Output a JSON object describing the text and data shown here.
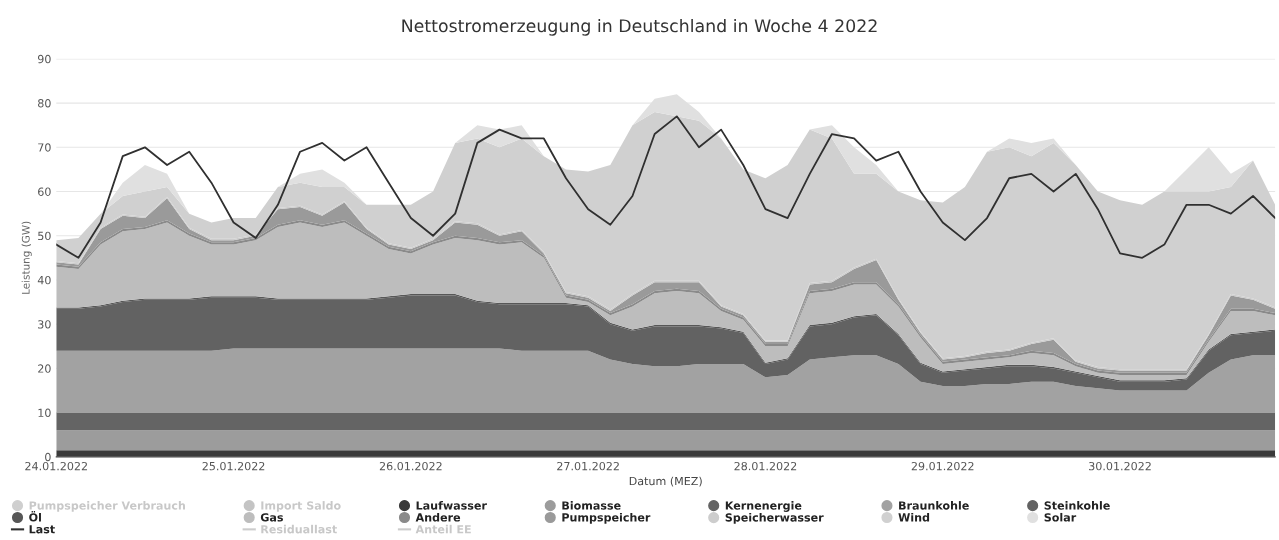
{
  "chart_data": {
    "type": "area",
    "title": "Nettostromerzeugung in Deutschland in Woche 4 2022",
    "xlabel": "Datum (MEZ)",
    "ylabel": "Leistung (GW)",
    "stacked": true,
    "grid": "y",
    "legend": "bottom",
    "x": [
      "2022-01-24T00:00",
      "2022-01-24T03:00",
      "2022-01-24T06:00",
      "2022-01-24T09:00",
      "2022-01-24T12:00",
      "2022-01-24T15:00",
      "2022-01-24T18:00",
      "2022-01-24T21:00",
      "2022-01-25T00:00",
      "2022-01-25T03:00",
      "2022-01-25T06:00",
      "2022-01-25T09:00",
      "2022-01-25T12:00",
      "2022-01-25T15:00",
      "2022-01-25T18:00",
      "2022-01-25T21:00",
      "2022-01-26T00:00",
      "2022-01-26T03:00",
      "2022-01-26T06:00",
      "2022-01-26T09:00",
      "2022-01-26T12:00",
      "2022-01-26T15:00",
      "2022-01-26T18:00",
      "2022-01-26T21:00",
      "2022-01-27T00:00",
      "2022-01-27T03:00",
      "2022-01-27T06:00",
      "2022-01-27T09:00",
      "2022-01-27T12:00",
      "2022-01-27T15:00",
      "2022-01-27T18:00",
      "2022-01-27T21:00",
      "2022-01-28T00:00",
      "2022-01-28T03:00",
      "2022-01-28T06:00",
      "2022-01-28T09:00",
      "2022-01-28T12:00",
      "2022-01-28T15:00",
      "2022-01-28T18:00",
      "2022-01-28T21:00",
      "2022-01-29T00:00",
      "2022-01-29T03:00",
      "2022-01-29T06:00",
      "2022-01-29T09:00",
      "2022-01-29T12:00",
      "2022-01-29T15:00",
      "2022-01-29T18:00",
      "2022-01-29T21:00",
      "2022-01-30T00:00",
      "2022-01-30T03:00",
      "2022-01-30T06:00",
      "2022-01-30T09:00",
      "2022-01-30T12:00",
      "2022-01-30T15:00",
      "2022-01-30T18:00",
      "2022-01-30T21:00"
    ],
    "xlim": [
      "2022-01-24T00:00",
      "2022-01-30T21:00"
    ],
    "xticks": [
      {
        "value": "2022-01-24",
        "label": "24.01.2022"
      },
      {
        "value": "2022-01-25",
        "label": "25.01.2022"
      },
      {
        "value": "2022-01-26",
        "label": "26.01.2022"
      },
      {
        "value": "2022-01-27",
        "label": "27.01.2022"
      },
      {
        "value": "2022-01-28",
        "label": "28.01.2022"
      },
      {
        "value": "2022-01-29",
        "label": "29.01.2022"
      },
      {
        "value": "2022-01-30",
        "label": "30.01.2022"
      }
    ],
    "ylim": [
      0,
      90
    ],
    "yticks": [
      0,
      10,
      20,
      30,
      40,
      50,
      60,
      70,
      80,
      90
    ],
    "series": [
      {
        "name": "Pumpspeicher Verbrauch",
        "color": "#cfcfcf",
        "values": [
          null,
          null,
          null,
          null,
          null,
          null,
          null,
          null,
          null,
          null,
          null,
          null,
          null,
          null,
          null,
          null,
          null,
          null,
          null,
          null,
          null,
          null,
          null,
          null,
          null,
          null,
          null,
          null,
          null,
          null,
          null,
          null,
          null,
          null,
          null,
          null,
          null,
          null,
          null,
          null,
          null,
          null,
          null,
          null,
          null,
          null,
          null,
          null,
          null,
          null,
          null,
          null,
          null,
          null,
          null,
          null
        ]
      },
      {
        "name": "Import Saldo",
        "color": "#c4c4c4",
        "values": [
          null,
          null,
          null,
          null,
          null,
          null,
          null,
          null,
          null,
          null,
          null,
          null,
          null,
          null,
          null,
          null,
          null,
          null,
          null,
          null,
          null,
          null,
          null,
          null,
          null,
          null,
          null,
          null,
          null,
          null,
          null,
          null,
          null,
          null,
          null,
          null,
          null,
          null,
          null,
          null,
          null,
          null,
          null,
          null,
          null,
          null,
          null,
          null,
          null,
          null,
          null,
          null,
          null,
          null,
          null,
          null
        ]
      },
      {
        "name": "Laufwasser",
        "type": "area",
        "color": "#3a3a3a",
        "values": [
          1.5,
          1.5,
          1.5,
          1.5,
          1.5,
          1.5,
          1.5,
          1.5,
          1.5,
          1.5,
          1.5,
          1.5,
          1.5,
          1.5,
          1.5,
          1.5,
          1.5,
          1.5,
          1.5,
          1.5,
          1.5,
          1.5,
          1.5,
          1.5,
          1.5,
          1.5,
          1.5,
          1.5,
          1.5,
          1.5,
          1.5,
          1.5,
          1.5,
          1.5,
          1.5,
          1.5,
          1.5,
          1.5,
          1.5,
          1.5,
          1.5,
          1.5,
          1.5,
          1.5,
          1.5,
          1.5,
          1.5,
          1.5,
          1.5,
          1.5,
          1.5,
          1.5,
          1.5,
          1.5,
          1.5,
          1.5
        ]
      },
      {
        "name": "Biomasse",
        "type": "area",
        "color": "#9c9c9c",
        "values": [
          4.5,
          4.5,
          4.5,
          4.5,
          4.5,
          4.5,
          4.5,
          4.5,
          4.5,
          4.5,
          4.5,
          4.5,
          4.5,
          4.5,
          4.5,
          4.5,
          4.5,
          4.5,
          4.5,
          4.5,
          4.5,
          4.5,
          4.5,
          4.5,
          4.5,
          4.5,
          4.5,
          4.5,
          4.5,
          4.5,
          4.5,
          4.5,
          4.5,
          4.5,
          4.5,
          4.5,
          4.5,
          4.5,
          4.5,
          4.5,
          4.5,
          4.5,
          4.5,
          4.5,
          4.5,
          4.5,
          4.5,
          4.5,
          4.5,
          4.5,
          4.5,
          4.5,
          4.5,
          4.5,
          4.5,
          4.5
        ]
      },
      {
        "name": "Kernenergie",
        "type": "area",
        "color": "#646464",
        "values": [
          4,
          4,
          4,
          4,
          4,
          4,
          4,
          4,
          4,
          4,
          4,
          4,
          4,
          4,
          4,
          4,
          4,
          4,
          4,
          4,
          4,
          4,
          4,
          4,
          4,
          4,
          4,
          4,
          4,
          4,
          4,
          4,
          4,
          4,
          4,
          4,
          4,
          4,
          4,
          4,
          4,
          4,
          4,
          4,
          4,
          4,
          4,
          4,
          4,
          4,
          4,
          4,
          4,
          4,
          4,
          4
        ]
      },
      {
        "name": "Braunkohle",
        "type": "area",
        "color": "#a2a2a2",
        "values": [
          14,
          14,
          14,
          14,
          14,
          14,
          14,
          14,
          14.5,
          14.5,
          14.5,
          14.5,
          14.5,
          14.5,
          14.5,
          14.5,
          14.5,
          14.5,
          14.5,
          14.5,
          14.5,
          14,
          14,
          14,
          14,
          12,
          11,
          10.5,
          10.5,
          11,
          11,
          11,
          8,
          8.5,
          12,
          12.5,
          13,
          13,
          11,
          7,
          6,
          6,
          6.5,
          6.5,
          7,
          7,
          6,
          5.5,
          5,
          5,
          5,
          5,
          9,
          12,
          13,
          13
        ]
      },
      {
        "name": "Steinkohle",
        "type": "area",
        "color": "#626262",
        "values": [
          9.5,
          9.5,
          10,
          11,
          11.5,
          11.5,
          11.5,
          12,
          11.5,
          11.5,
          11,
          11,
          11,
          11,
          11,
          11.5,
          12,
          12,
          12,
          10.5,
          10,
          10.5,
          10.5,
          10.5,
          10,
          8,
          7.5,
          9,
          9,
          8.5,
          8,
          7,
          3,
          3.5,
          7.5,
          7.5,
          8.5,
          9,
          6.5,
          4,
          3,
          3.5,
          3.5,
          4,
          3.5,
          3,
          3,
          2.5,
          2,
          2,
          2,
          2.5,
          5,
          5.5,
          5,
          5.5
        ]
      },
      {
        "name": "Öl",
        "type": "area",
        "color": "#575757",
        "values": [
          0.3,
          0.3,
          0.3,
          0.3,
          0.3,
          0.3,
          0.3,
          0.3,
          0.3,
          0.3,
          0.3,
          0.3,
          0.3,
          0.3,
          0.3,
          0.3,
          0.3,
          0.3,
          0.3,
          0.3,
          0.3,
          0.3,
          0.3,
          0.3,
          0.3,
          0.3,
          0.3,
          0.3,
          0.3,
          0.3,
          0.3,
          0.3,
          0.3,
          0.3,
          0.3,
          0.3,
          0.3,
          0.3,
          0.3,
          0.3,
          0.3,
          0.3,
          0.3,
          0.3,
          0.3,
          0.3,
          0.3,
          0.3,
          0.3,
          0.3,
          0.3,
          0.3,
          0.3,
          0.3,
          0.3,
          0.3
        ]
      },
      {
        "name": "Gas",
        "type": "area",
        "color": "#bdbdbd",
        "values": [
          9.2,
          8.7,
          13.7,
          15.7,
          15.7,
          17.2,
          14.2,
          11.7,
          11.7,
          12.7,
          16.2,
          17.2,
          16.2,
          17.2,
          14.2,
          10.7,
          9.2,
          11.2,
          12.7,
          13.7,
          13.2,
          13.7,
          10.2,
          1.2,
          0.7,
          1.7,
          5.2,
          7.2,
          7.7,
          7.2,
          3.7,
          2.7,
          3.7,
          2.7,
          7.2,
          7.2,
          7.2,
          6.7,
          6.2,
          5.7,
          1.7,
          1.7,
          1.7,
          1.7,
          2.7,
          2.7,
          1.2,
          0.7,
          1.2,
          1.2,
          1.2,
          0.7,
          1.7,
          5.2,
          4.7,
          3.2
        ]
      },
      {
        "name": "Andere",
        "type": "area",
        "color": "#8a8a8a",
        "values": [
          0.5,
          0.5,
          0.5,
          0.5,
          0.5,
          0.5,
          0.5,
          0.5,
          0.5,
          0.5,
          0.5,
          0.5,
          0.5,
          0.5,
          0.5,
          0.5,
          0.5,
          0.5,
          0.5,
          0.5,
          0.5,
          0.5,
          0.5,
          0.5,
          0.5,
          0.5,
          0.5,
          0.5,
          0.5,
          0.5,
          0.5,
          0.5,
          0.5,
          0.5,
          0.5,
          0.5,
          0.5,
          0.5,
          0.5,
          0.5,
          0.5,
          0.5,
          0.5,
          0.5,
          0.5,
          0.5,
          0.5,
          0.5,
          0.5,
          0.5,
          0.5,
          0.5,
          0.5,
          0.5,
          0.5,
          0.5
        ]
      },
      {
        "name": "Pumpspeicher",
        "type": "area",
        "color": "#9a9a9a",
        "values": [
          0.5,
          0.5,
          3,
          3,
          2,
          5,
          1,
          0.5,
          0.5,
          0.5,
          3.5,
          3,
          2,
          4,
          1,
          0.5,
          0.5,
          0.5,
          3,
          3,
          1.5,
          2,
          0.5,
          0.5,
          0.5,
          0.5,
          2,
          2,
          1.5,
          2,
          0.5,
          0.5,
          0.5,
          0.5,
          1.5,
          1.5,
          3,
          5,
          1,
          0.5,
          0.5,
          0.5,
          1,
          1,
          1.5,
          3,
          0.5,
          0.5,
          0.5,
          0.5,
          0.5,
          0.5,
          1,
          3,
          2,
          1
        ]
      },
      {
        "name": "Speicherwasser",
        "type": "area",
        "color": "#cdcdcd",
        "values": [
          0.3,
          0.3,
          0.3,
          0.3,
          0.3,
          0.3,
          0.3,
          0.3,
          0.3,
          0.3,
          0.3,
          0.3,
          0.3,
          0.3,
          0.3,
          0.3,
          0.3,
          0.3,
          0.3,
          0.3,
          0.3,
          0.3,
          0.3,
          0.3,
          0.3,
          0.3,
          0.3,
          0.3,
          0.3,
          0.3,
          0.3,
          0.3,
          0.3,
          0.3,
          0.3,
          0.3,
          0.3,
          0.3,
          0.3,
          0.3,
          0.3,
          0.3,
          0.3,
          0.3,
          0.3,
          0.3,
          0.3,
          0.3,
          0.3,
          0.3,
          0.3,
          0.3,
          0.3,
          0.3,
          0.3,
          0.3
        ]
      },
      {
        "name": "Wind",
        "type": "area",
        "color": "#d0d0d0",
        "values": [
          4.7,
          5.7,
          3.2,
          4.2,
          5.7,
          2.2,
          3.2,
          3.7,
          4.7,
          3.7,
          4.7,
          5.2,
          6.2,
          3.2,
          5.2,
          8.7,
          9.7,
          10.7,
          17.7,
          19.2,
          19.7,
          20.7,
          21.7,
          27.7,
          28.2,
          32.7,
          38.2,
          38.2,
          37.2,
          36.2,
          37.7,
          32.7,
          36.7,
          39.7,
          34.7,
          32.2,
          21.2,
          19.2,
          24.2,
          29.7,
          35.2,
          38.2,
          45.2,
          45.7,
          42.2,
          44.2,
          44.2,
          39.7,
          38.2,
          37.2,
          40.2,
          40.2,
          32.2,
          24.2,
          31.2,
          23.2
        ]
      },
      {
        "name": "Solar",
        "type": "area",
        "color": "#e0e0e0",
        "values": [
          0,
          0,
          0,
          3,
          6,
          3,
          0,
          0,
          0,
          0,
          0,
          2,
          4,
          1,
          0,
          0,
          0,
          0,
          0,
          3,
          4,
          3,
          0,
          0,
          0,
          0,
          0,
          3,
          5,
          2,
          0,
          0,
          0,
          0,
          0,
          3,
          6,
          2,
          0,
          0,
          0,
          0,
          0,
          2,
          3,
          1,
          0,
          0,
          0,
          0,
          0,
          5,
          10,
          3,
          0,
          0
        ]
      },
      {
        "name": "Last",
        "type": "line",
        "color": "#303030",
        "values": [
          48,
          45,
          53,
          68,
          70,
          66,
          69,
          62,
          53,
          49.5,
          57,
          69,
          71,
          67,
          70,
          62,
          54,
          50,
          55,
          71,
          74,
          72,
          72,
          63,
          56,
          52.5,
          59,
          73,
          77,
          70,
          74,
          66,
          56,
          54,
          64,
          73,
          72,
          67,
          69,
          60,
          53,
          49,
          54,
          63,
          64,
          60,
          64,
          56,
          46,
          45,
          48,
          57,
          57,
          55,
          59,
          54
        ]
      },
      {
        "name": "Residuallast",
        "type": "line",
        "color": "#cccccc",
        "values": [
          null,
          null,
          null,
          null,
          null,
          null,
          null,
          null,
          null,
          null,
          null,
          null,
          null,
          null,
          null,
          null,
          null,
          null,
          null,
          null,
          null,
          null,
          null,
          null,
          null,
          null,
          null,
          null,
          null,
          null,
          null,
          null,
          null,
          null,
          null,
          null,
          null,
          null,
          null,
          null,
          null,
          null,
          null,
          null,
          null,
          null,
          null,
          null,
          null,
          null,
          null,
          null,
          null,
          null,
          null,
          null
        ]
      },
      {
        "name": "Anteil EE",
        "type": "line",
        "color": "#cccccc",
        "values": [
          null,
          null,
          null,
          null,
          null,
          null,
          null,
          null,
          null,
          null,
          null,
          null,
          null,
          null,
          null,
          null,
          null,
          null,
          null,
          null,
          null,
          null,
          null,
          null,
          null,
          null,
          null,
          null,
          null,
          null,
          null,
          null,
          null,
          null,
          null,
          null,
          null,
          null,
          null,
          null,
          null,
          null,
          null,
          null,
          null,
          null,
          null,
          null,
          null,
          null,
          null,
          null,
          null,
          null,
          null,
          null
        ]
      }
    ]
  }
}
